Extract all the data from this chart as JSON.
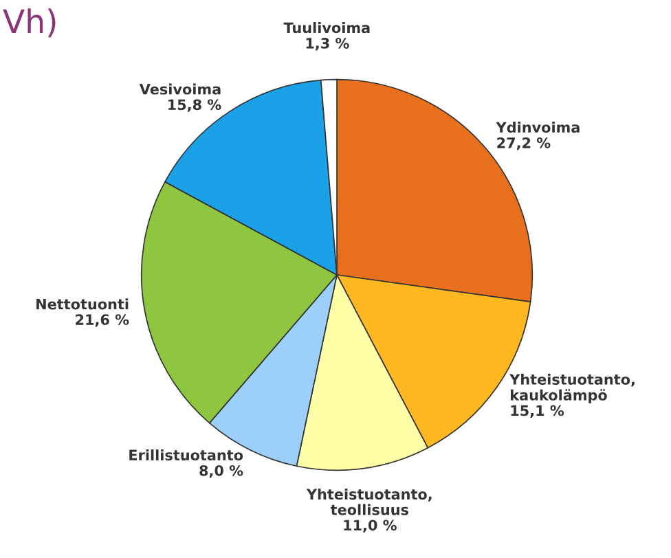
{
  "chart_data": {
    "type": "pie",
    "title": "Vh)",
    "categories": [
      "Ydinvoima",
      "Yhteistuotanto,\nkaukolämpö",
      "Yhteistuotanto,\nteollisuus",
      "Erillistuotanto",
      "Nettotuonti",
      "Vesivoima",
      "Tuulivoima"
    ],
    "values": [
      27.2,
      15.1,
      11.0,
      8.0,
      21.6,
      15.8,
      1.3
    ],
    "value_labels": [
      "27,2 %",
      "15,1 %",
      "11,0 %",
      "8,0 %",
      "21,6 %",
      "15,8 %",
      "1,3 %"
    ],
    "colors": [
      "#e8701c",
      "#ffb820",
      "#ffffa8",
      "#9ccffa",
      "#8ec63f",
      "#1ba1e8",
      "#ffffff"
    ],
    "legend": false
  }
}
